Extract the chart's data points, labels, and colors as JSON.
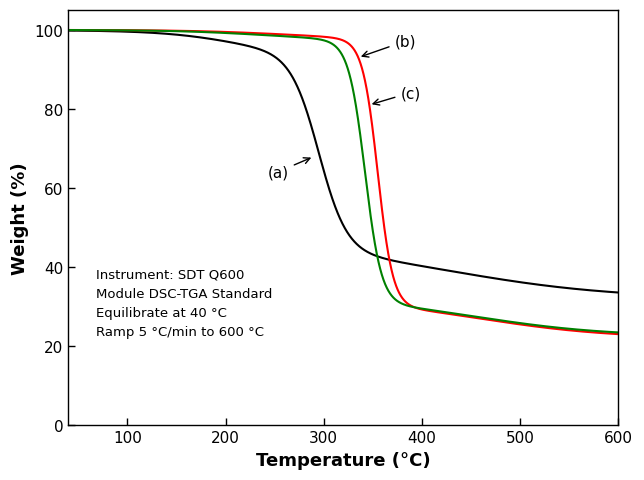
{
  "title": "",
  "xlabel": "Temperature (°C)",
  "ylabel": "Weight (%)",
  "xlim": [
    40,
    600
  ],
  "ylim": [
    0,
    105
  ],
  "xticks": [
    100,
    200,
    300,
    400,
    500,
    600
  ],
  "yticks": [
    0,
    20,
    40,
    60,
    80,
    100
  ],
  "color_a": "#000000",
  "color_b": "#ff0000",
  "color_c": "#008000",
  "annotation_text_a": "(a)",
  "annotation_text_b": "(b)",
  "annotation_text_c": "(c)",
  "instrument_text": "Instrument: SDT Q600\nModule DSC-TGA Standard\nEquilibrate at 40 °C\nRamp 5 °C/min to 600 °C",
  "linewidth": 1.5,
  "figsize": [
    6.44,
    4.81
  ],
  "dpi": 100
}
